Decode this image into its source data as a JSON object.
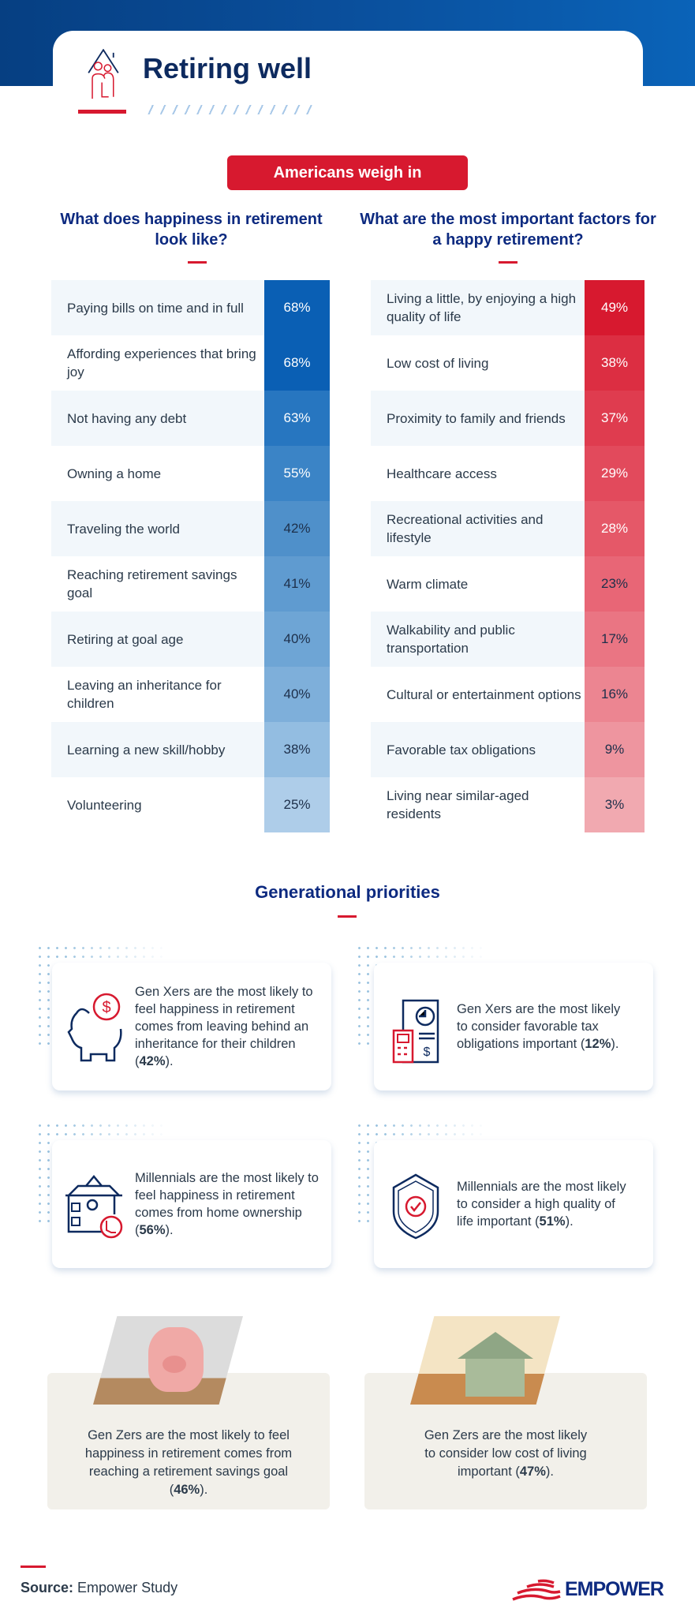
{
  "header": {
    "title": "Retiring well"
  },
  "banner": "Americans weigh in",
  "left": {
    "question": "What does happiness in retirement look like?",
    "rows": [
      {
        "label": "Paying bills on time and in full",
        "value": "68%",
        "bg": "#0a5fb4",
        "fg": "#ffffff"
      },
      {
        "label": "Affording experiences that bring joy",
        "value": "68%",
        "bg": "#0a5fb4",
        "fg": "#ffffff"
      },
      {
        "label": "Not having any debt",
        "value": "63%",
        "bg": "#2776c0",
        "fg": "#ffffff"
      },
      {
        "label": "Owning a home",
        "value": "55%",
        "bg": "#3b84c6",
        "fg": "#ffffff"
      },
      {
        "label": "Traveling the world",
        "value": "42%",
        "bg": "#4f90ca",
        "fg": "#1d2f4a"
      },
      {
        "label": "Reaching retirement savings goal",
        "value": "41%",
        "bg": "#5f9bd0",
        "fg": "#1d2f4a"
      },
      {
        "label": "Retiring at goal age",
        "value": "40%",
        "bg": "#6ea5d5",
        "fg": "#1d2f4a"
      },
      {
        "label": "Leaving an inheritance for children",
        "value": "40%",
        "bg": "#7eafda",
        "fg": "#1d2f4a"
      },
      {
        "label": "Learning a new skill/hobby",
        "value": "38%",
        "bg": "#93bde1",
        "fg": "#1d2f4a"
      },
      {
        "label": "Volunteering",
        "value": "25%",
        "bg": "#aecde9",
        "fg": "#1d2f4a"
      }
    ]
  },
  "right": {
    "question": "What are the most important factors for a happy retirement?",
    "rows": [
      {
        "label": "Living a little, by enjoying a high quality of life",
        "value": "49%",
        "bg": "#d7192f",
        "fg": "#ffffff"
      },
      {
        "label": "Low cost of living",
        "value": "38%",
        "bg": "#dc2e42",
        "fg": "#ffffff"
      },
      {
        "label": "Proximity to family and friends",
        "value": "37%",
        "bg": "#df3c4f",
        "fg": "#ffffff"
      },
      {
        "label": "Healthcare access",
        "value": "29%",
        "bg": "#e24a5c",
        "fg": "#ffffff"
      },
      {
        "label": "Recreational activities and lifestyle",
        "value": "28%",
        "bg": "#e55868",
        "fg": "#ffffff"
      },
      {
        "label": "Warm climate",
        "value": "23%",
        "bg": "#e86676",
        "fg": "#1d2f4a"
      },
      {
        "label": "Walkability and public transportation",
        "value": "17%",
        "bg": "#ea7583",
        "fg": "#1d2f4a"
      },
      {
        "label": "Cultural or entertainment options",
        "value": "16%",
        "bg": "#ec8591",
        "fg": "#1d2f4a"
      },
      {
        "label": "Favorable tax obligations",
        "value": "9%",
        "bg": "#ee959f",
        "fg": "#1d2f4a"
      },
      {
        "label": "Living near similar-aged residents",
        "value": "3%",
        "bg": "#f1a9b0",
        "fg": "#1d2f4a"
      }
    ]
  },
  "generational": {
    "title": "Generational priorities",
    "cards": [
      {
        "icon": "piggy-bank-dollar-icon",
        "text": "Gen Xers are the most likely to feel happiness in retirement comes from leaving behind an inheritance for their children (",
        "pct": "42%",
        "end": ")."
      },
      {
        "icon": "calculator-document-icon",
        "text": "Gen Xers are the most likely to consider favorable tax obligations important (",
        "pct": "12%",
        "end": ")."
      },
      {
        "icon": "house-rocking-chair-icon",
        "text": "Millennials are the most likely to feel happiness in retirement comes from home ownership (",
        "pct": "56%",
        "end": ")."
      },
      {
        "icon": "shield-check-icon",
        "text": "Millennials are the most likely to consider a high quality of life important (",
        "pct": "51%",
        "end": ")."
      },
      {
        "icon": "piggy-bank-photo",
        "text": "Gen Zers are the most likely to feel happiness in retirement comes from reaching a retirement savings goal (",
        "pct": "46%",
        "end": ")."
      },
      {
        "icon": "money-house-photo",
        "text": "Gen Zers are the most likely to consider low cost of living important (",
        "pct": "47%",
        "end": ")."
      }
    ]
  },
  "footer": {
    "source_label": "Source:",
    "source": "Empower Study",
    "brand": "EMPOWER"
  },
  "colors": {
    "navy": "#0d2a80",
    "red": "#d7192f",
    "blue": "#0a5fb4"
  }
}
